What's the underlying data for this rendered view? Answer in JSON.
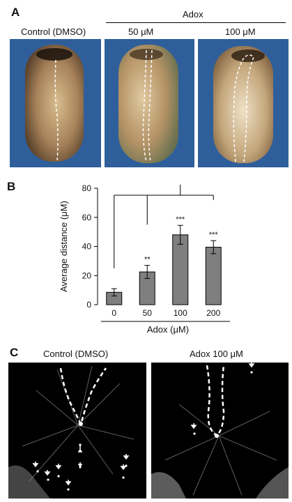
{
  "panel_a": {
    "letter": "A",
    "group_label": "Adox",
    "col_labels": [
      "Control (DMSO)",
      "50 μM",
      "100 μM"
    ]
  },
  "panel_b": {
    "letter": "B",
    "sig_marks": [
      "",
      "**",
      "***",
      "***"
    ]
  },
  "panel_c": {
    "letter": "C",
    "col_labels": [
      "Control (DMSO)",
      "Adox 100 μM"
    ]
  },
  "chart_data": {
    "type": "bar",
    "categories": [
      "0",
      "50",
      "100",
      "200"
    ],
    "values": [
      8.5,
      22.5,
      48,
      39.5
    ],
    "errors": [
      2.5,
      4.5,
      6.5,
      4.5
    ],
    "xlabel": "Adox (μM)",
    "ylabel": "Average distance (μM)",
    "ylim": [
      0,
      80
    ],
    "yticks": [
      0,
      20,
      40,
      60,
      80
    ],
    "bar_color": "#7f7f7f",
    "grid": false
  },
  "colors": {
    "background_blue": "#2f5f9a",
    "embryo_tan": "#9c7a52",
    "micrograph_bg": "#000000"
  }
}
